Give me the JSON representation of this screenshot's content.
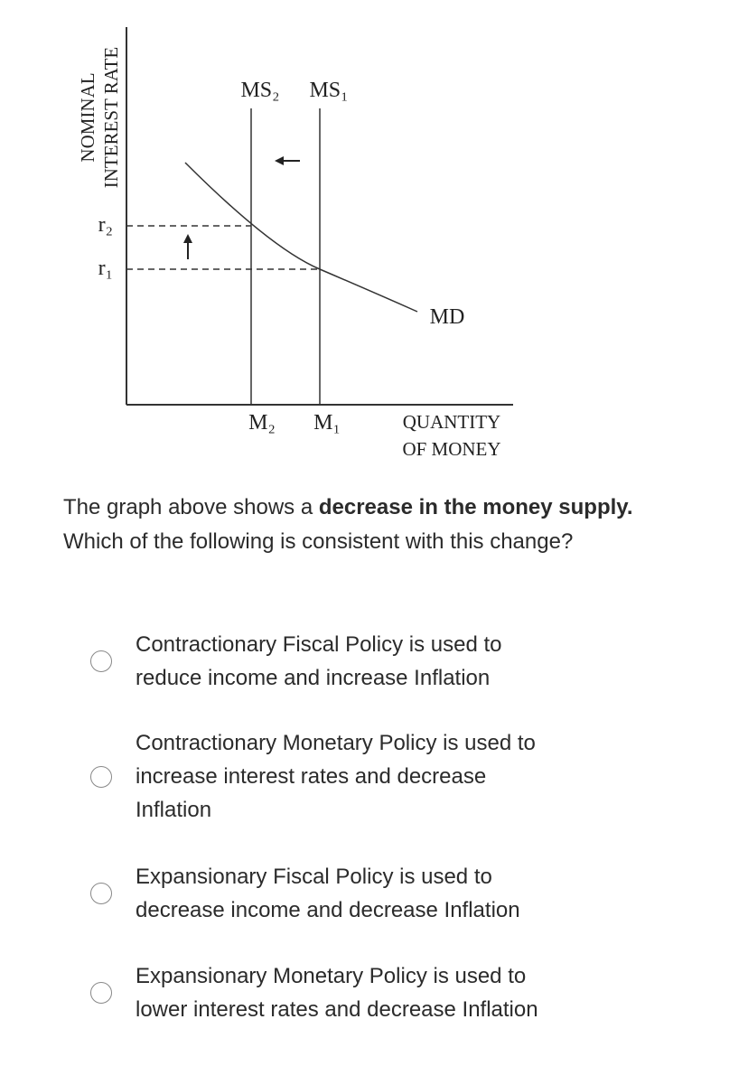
{
  "graph": {
    "y_axis_label": [
      "NOMINAL",
      "INTEREST RATE"
    ],
    "x_axis_label": [
      "QUANTITY",
      "OF MONEY"
    ],
    "supply_labels": [
      "MS₂",
      "MS₁"
    ],
    "rate_labels": [
      "r₂",
      "r₁"
    ],
    "quantity_labels": [
      "M₂",
      "M₁"
    ],
    "demand_label": "MD"
  },
  "question": {
    "parts": [
      "The graph above shows a ",
      "decrease in the money supply.",
      " Which of the following is consistent with this change?"
    ]
  },
  "options": [
    [
      "Contractionary Fiscal Policy is used to",
      "reduce income and increase Inflation"
    ],
    [
      "Contractionary Monetary Policy is used to",
      "increase interest rates and decrease",
      "Inflation"
    ],
    [
      "Expansionary Fiscal Policy is used to",
      "decrease income and decrease Inflation"
    ],
    [
      "Expansionary Monetary Policy is used to",
      "lower interest rates and decrease Inflation"
    ]
  ]
}
